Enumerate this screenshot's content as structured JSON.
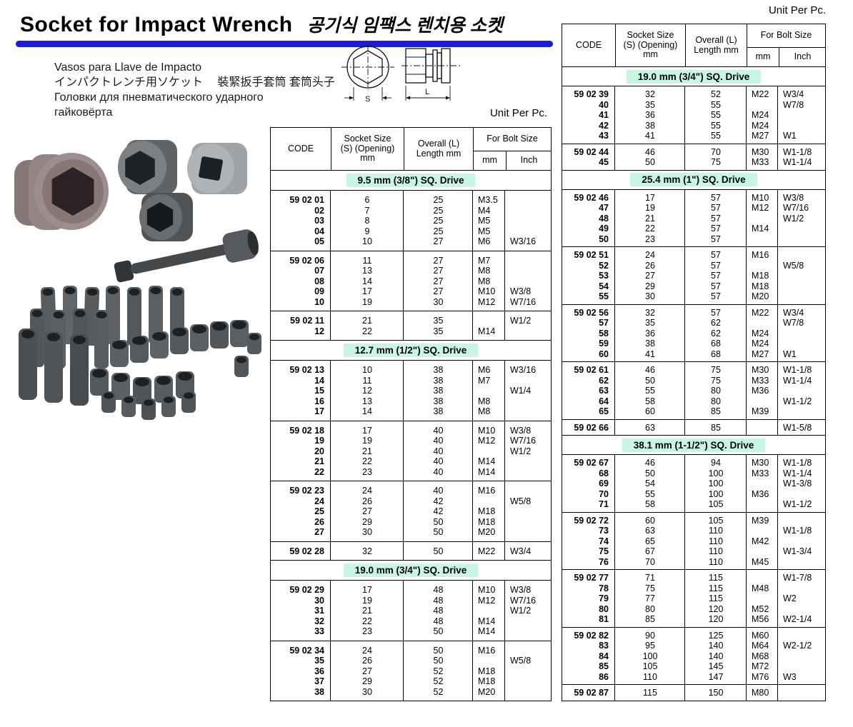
{
  "page": {
    "title_en": "Socket for Impact Wrench",
    "title_ko": "공기식 임팩스 렌치용 소켓",
    "subtitle_lines": [
      "Vasos para Llave de Impacto",
      "インパクトレンチ用ソケット　 裝緊扳手套筒 套筒头子",
      "Головки для пневматического ударного",
      "гайковёрта"
    ],
    "unit_label": "Unit Per Pc.",
    "colors": {
      "accent_blue": "#1b1be0",
      "section_bg": "#c7f6e2"
    }
  },
  "drawing": {
    "s_label": "S",
    "l_label": "L"
  },
  "header": {
    "code": "CODE",
    "socket_lines": [
      "Socket Size",
      "(S) (Opening)",
      "mm"
    ],
    "overall_lines": [
      "Overall (L)",
      "Length mm"
    ],
    "bolt": "For Bolt Size",
    "mm": "mm",
    "inch": "Inch"
  },
  "left_table": {
    "sections": [
      {
        "title": "9.5 mm (3/8\") SQ. Drive",
        "groups": [
          [
            [
              "59 02 01",
              "6",
              "25",
              "M3.5",
              ""
            ],
            [
              "02",
              "7",
              "25",
              "M4",
              ""
            ],
            [
              "03",
              "8",
              "25",
              "M5",
              ""
            ],
            [
              "04",
              "9",
              "25",
              "M5",
              ""
            ],
            [
              "05",
              "10",
              "27",
              "M6",
              "W3/16"
            ]
          ],
          [
            [
              "59 02 06",
              "11",
              "27",
              "M7",
              ""
            ],
            [
              "07",
              "13",
              "27",
              "M8",
              ""
            ],
            [
              "08",
              "14",
              "27",
              "M8",
              ""
            ],
            [
              "09",
              "17",
              "27",
              "M10",
              "W3/8"
            ],
            [
              "10",
              "19",
              "30",
              "M12",
              "W7/16"
            ]
          ],
          [
            [
              "59 02 11",
              "21",
              "35",
              "",
              "W1/2"
            ],
            [
              "12",
              "22",
              "35",
              "M14",
              ""
            ]
          ]
        ]
      },
      {
        "title": "12.7 mm (1/2\") SQ. Drive",
        "groups": [
          [
            [
              "59 02 13",
              "10",
              "38",
              "M6",
              "W3/16"
            ],
            [
              "14",
              "11",
              "38",
              "M7",
              ""
            ],
            [
              "15",
              "12",
              "38",
              "",
              "W1/4"
            ],
            [
              "16",
              "13",
              "38",
              "M8",
              ""
            ],
            [
              "17",
              "14",
              "38",
              "M8",
              ""
            ]
          ],
          [
            [
              "59 02 18",
              "17",
              "40",
              "M10",
              "W3/8"
            ],
            [
              "19",
              "19",
              "40",
              "M12",
              "W7/16"
            ],
            [
              "20",
              "21",
              "40",
              "",
              "W1/2"
            ],
            [
              "21",
              "22",
              "40",
              "M14",
              ""
            ],
            [
              "22",
              "23",
              "40",
              "M14",
              ""
            ]
          ],
          [
            [
              "59 02 23",
              "24",
              "40",
              "M16",
              ""
            ],
            [
              "24",
              "26",
              "42",
              "",
              "W5/8"
            ],
            [
              "25",
              "27",
              "42",
              "M18",
              ""
            ],
            [
              "26",
              "29",
              "50",
              "M18",
              ""
            ],
            [
              "27",
              "30",
              "50",
              "M20",
              ""
            ]
          ],
          [
            [
              "59 02 28",
              "32",
              "50",
              "M22",
              "W3/4"
            ]
          ]
        ]
      },
      {
        "title": "19.0 mm (3/4\") SQ. Drive",
        "groups": [
          [
            [
              "59 02 29",
              "17",
              "48",
              "M10",
              "W3/8"
            ],
            [
              "30",
              "19",
              "48",
              "M12",
              "W7/16"
            ],
            [
              "31",
              "21",
              "48",
              "",
              "W1/2"
            ],
            [
              "32",
              "22",
              "48",
              "M14",
              ""
            ],
            [
              "33",
              "23",
              "50",
              "M14",
              ""
            ]
          ],
          [
            [
              "59 02 34",
              "24",
              "50",
              "M16",
              ""
            ],
            [
              "35",
              "26",
              "50",
              "",
              "W5/8"
            ],
            [
              "36",
              "27",
              "52",
              "M18",
              ""
            ],
            [
              "37",
              "29",
              "52",
              "M18",
              ""
            ],
            [
              "38",
              "30",
              "52",
              "M20",
              ""
            ]
          ]
        ]
      }
    ]
  },
  "right_table": {
    "sections": [
      {
        "title": "19.0 mm (3/4\") SQ. Drive",
        "groups": [
          [
            [
              "59 02 39",
              "32",
              "52",
              "M22",
              "W3/4"
            ],
            [
              "40",
              "35",
              "55",
              "",
              "W7/8"
            ],
            [
              "41",
              "36",
              "55",
              "M24",
              ""
            ],
            [
              "42",
              "38",
              "55",
              "M24",
              ""
            ],
            [
              "43",
              "41",
              "55",
              "M27",
              "W1"
            ]
          ],
          [
            [
              "59 02 44",
              "46",
              "70",
              "M30",
              "W1-1/8"
            ],
            [
              "45",
              "50",
              "75",
              "M33",
              "W1-1/4"
            ]
          ]
        ]
      },
      {
        "title": "25.4 mm (1\") SQ. Drive",
        "groups": [
          [
            [
              "59 02 46",
              "17",
              "57",
              "M10",
              "W3/8"
            ],
            [
              "47",
              "19",
              "57",
              "M12",
              "W7/16"
            ],
            [
              "48",
              "21",
              "57",
              "",
              "W1/2"
            ],
            [
              "49",
              "22",
              "57",
              "M14",
              ""
            ],
            [
              "50",
              "23",
              "57",
              "",
              ""
            ]
          ],
          [
            [
              "59 02 51",
              "24",
              "57",
              "M16",
              ""
            ],
            [
              "52",
              "26",
              "57",
              "",
              "W5/8"
            ],
            [
              "53",
              "27",
              "57",
              "M18",
              ""
            ],
            [
              "54",
              "29",
              "57",
              "M18",
              ""
            ],
            [
              "55",
              "30",
              "57",
              "M20",
              ""
            ]
          ],
          [
            [
              "59 02 56",
              "32",
              "57",
              "M22",
              "W3/4"
            ],
            [
              "57",
              "35",
              "62",
              "",
              "W7/8"
            ],
            [
              "58",
              "36",
              "62",
              "M24",
              ""
            ],
            [
              "59",
              "38",
              "68",
              "M24",
              ""
            ],
            [
              "60",
              "41",
              "68",
              "M27",
              "W1"
            ]
          ],
          [
            [
              "59 02 61",
              "46",
              "75",
              "M30",
              "W1-1/8"
            ],
            [
              "62",
              "50",
              "75",
              "M33",
              "W1-1/4"
            ],
            [
              "63",
              "55",
              "80",
              "M36",
              ""
            ],
            [
              "64",
              "58",
              "80",
              "",
              "W1-1/2"
            ],
            [
              "65",
              "60",
              "85",
              "M39",
              ""
            ]
          ],
          [
            [
              "59 02 66",
              "63",
              "85",
              "",
              "W1-5/8"
            ]
          ]
        ]
      },
      {
        "title": "38.1 mm (1-1/2\") SQ. Drive",
        "groups": [
          [
            [
              "59 02 67",
              "46",
              "94",
              "M30",
              "W1-1/8"
            ],
            [
              "68",
              "50",
              "100",
              "M33",
              "W1-1/4"
            ],
            [
              "69",
              "54",
              "100",
              "",
              "W1-3/8"
            ],
            [
              "70",
              "55",
              "100",
              "M36",
              ""
            ],
            [
              "71",
              "58",
              "105",
              "",
              "W1-1/2"
            ]
          ],
          [
            [
              "59 02 72",
              "60",
              "105",
              "M39",
              ""
            ],
            [
              "73",
              "63",
              "110",
              "",
              "W1-1/8"
            ],
            [
              "74",
              "65",
              "110",
              "M42",
              ""
            ],
            [
              "75",
              "67",
              "110",
              "",
              "W1-3/4"
            ],
            [
              "76",
              "70",
              "110",
              "M45",
              ""
            ]
          ],
          [
            [
              "59 02 77",
              "71",
              "115",
              "",
              "W1-7/8"
            ],
            [
              "78",
              "75",
              "115",
              "M48",
              ""
            ],
            [
              "79",
              "77",
              "115",
              "",
              "W2"
            ],
            [
              "80",
              "80",
              "120",
              "M52",
              ""
            ],
            [
              "81",
              "85",
              "120",
              "M56",
              "W2-1/4"
            ]
          ],
          [
            [
              "59 02 82",
              "90",
              "125",
              "M60",
              ""
            ],
            [
              "83",
              "95",
              "140",
              "M64",
              "W2-1/2"
            ],
            [
              "84",
              "100",
              "140",
              "M68",
              ""
            ],
            [
              "85",
              "105",
              "145",
              "M72",
              ""
            ],
            [
              "86",
              "110",
              "147",
              "M76",
              "W3"
            ]
          ],
          [
            [
              "59 02 87",
              "115",
              "150",
              "M80",
              ""
            ]
          ]
        ]
      }
    ]
  }
}
